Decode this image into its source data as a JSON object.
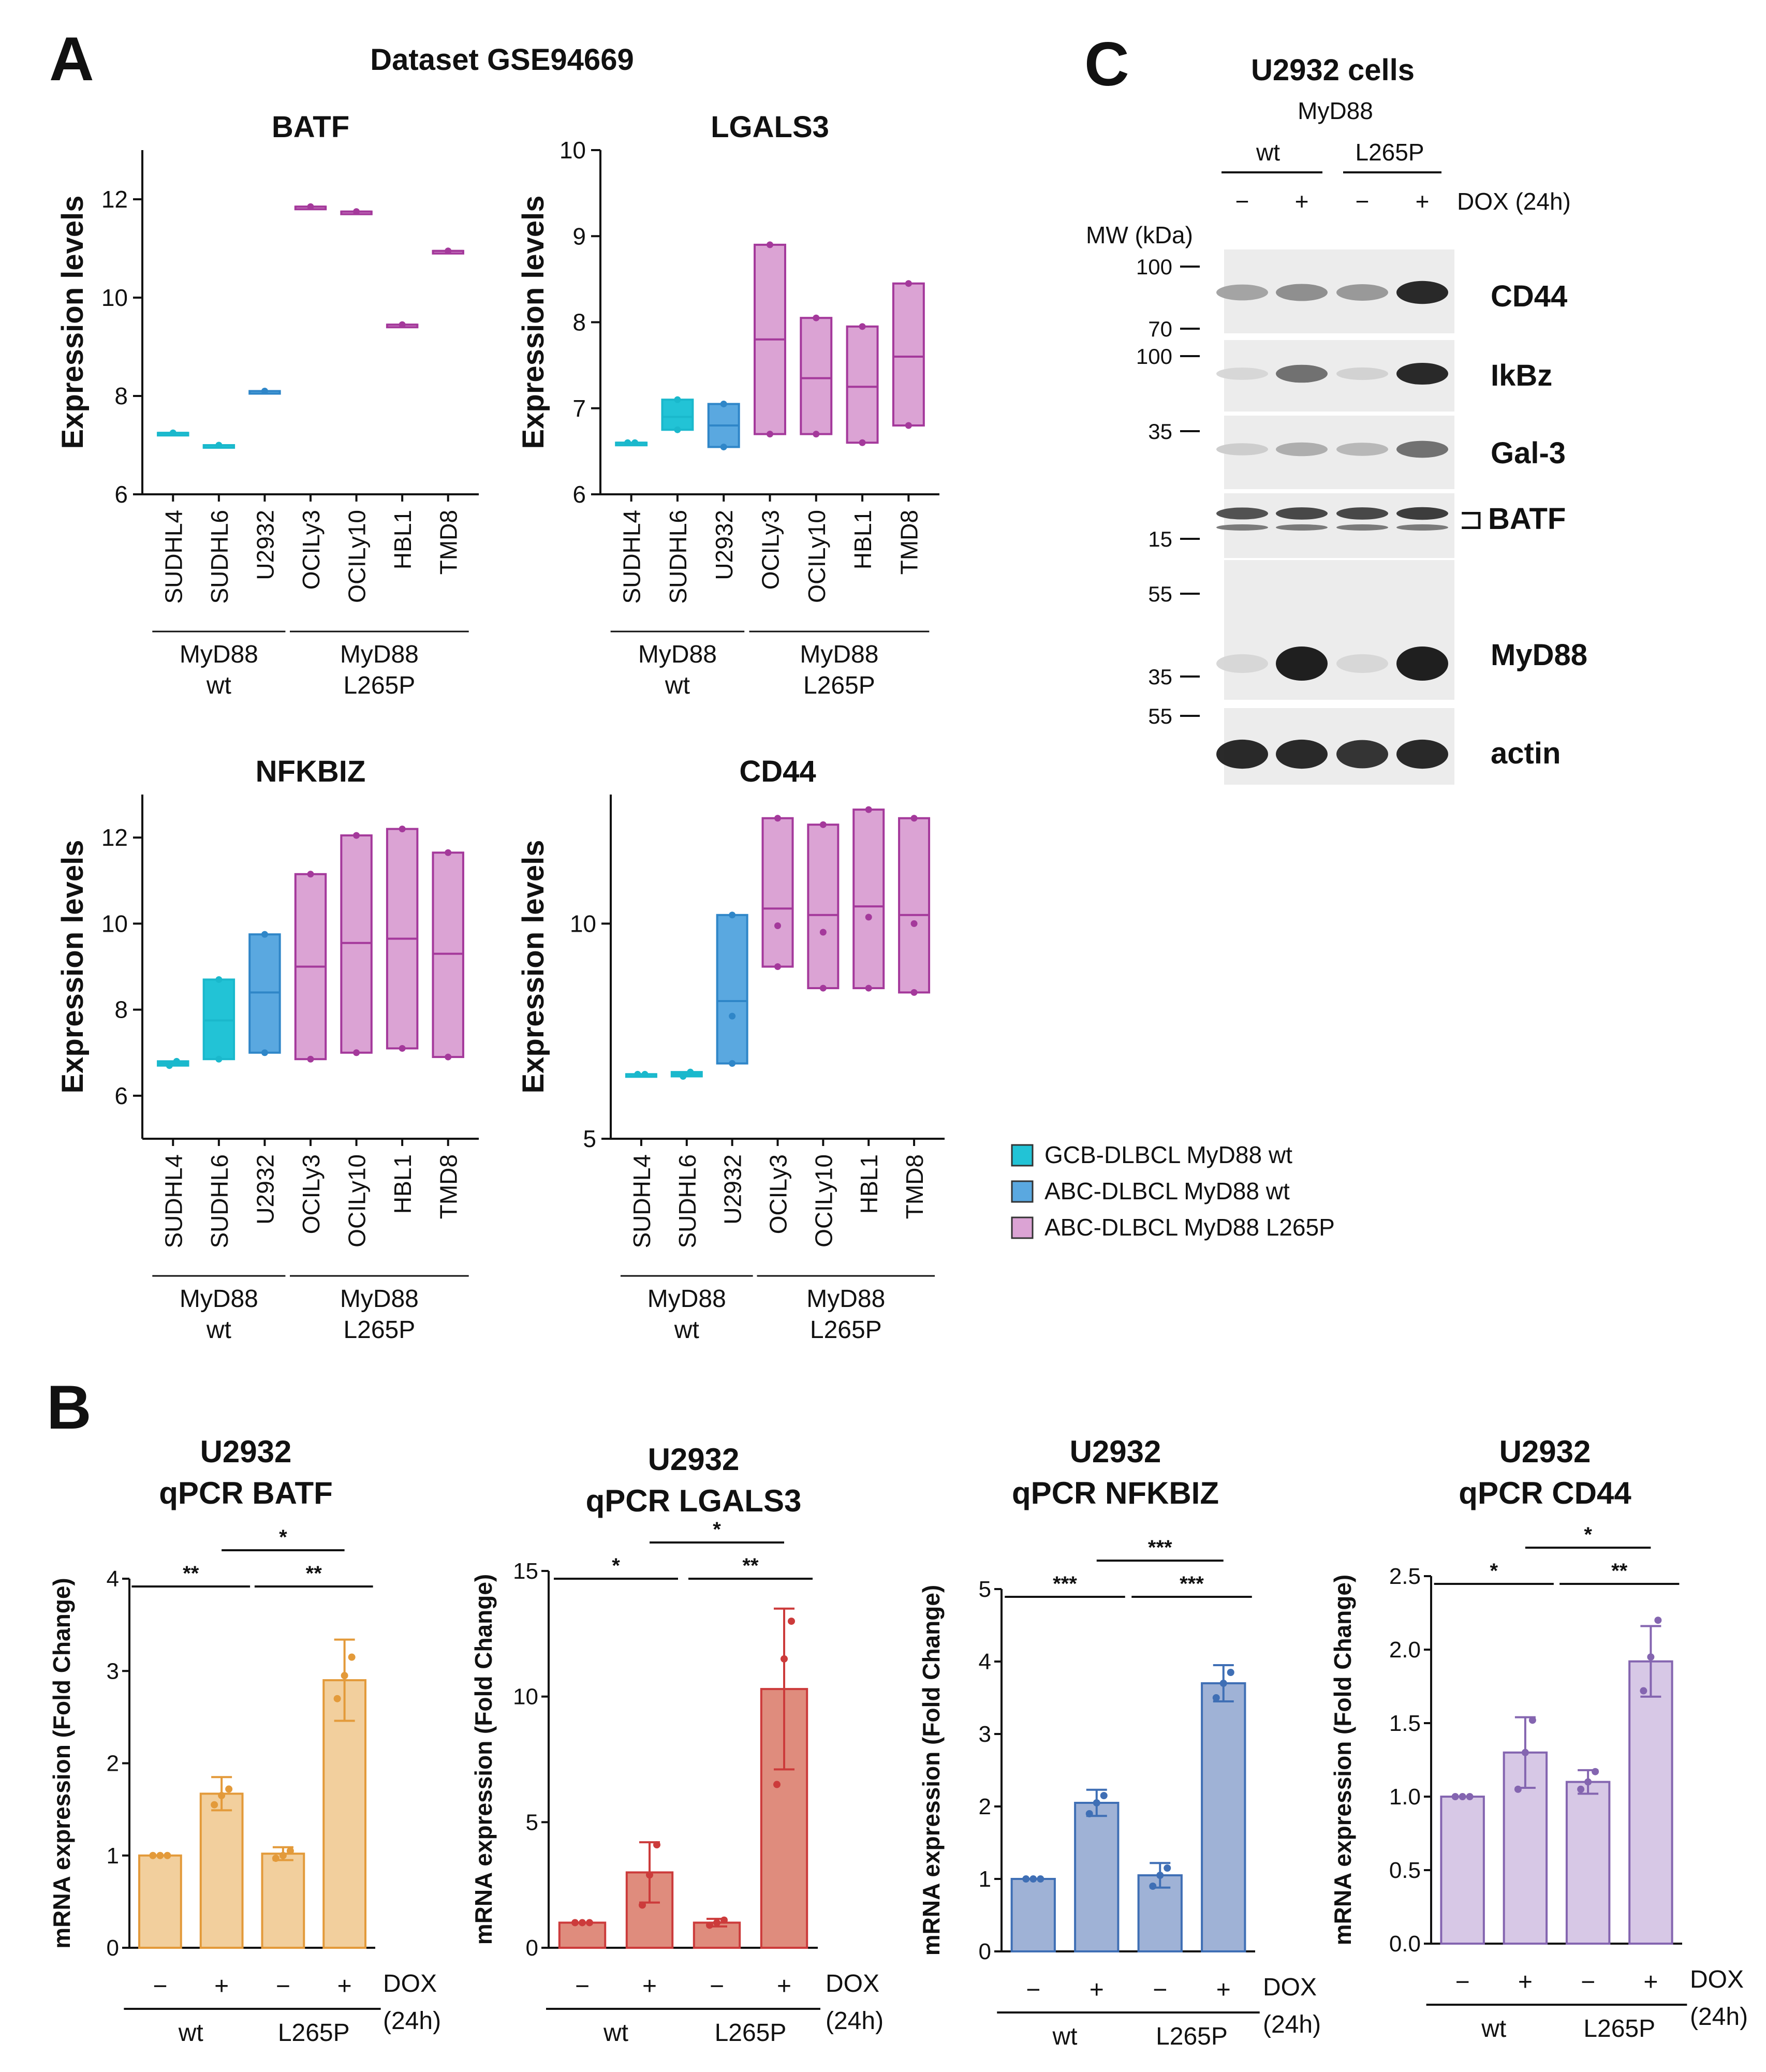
{
  "panel_labels": {
    "a": "A",
    "b": "B",
    "c": "C"
  },
  "dataset_title": "Dataset GSE94669",
  "colors": {
    "gcb_wt": "#1ab8cc",
    "abc_wt": "#2f86c8",
    "abc_l265p": "#a4399b",
    "gcb_fill": "#22c3d6",
    "abc_fill": "#5aa8e0",
    "l265p_fill": "#dba3d4",
    "batf": "#e39a3a",
    "lgals3": "#cc3b3b",
    "nfkbiz": "#3f6fb5",
    "cd44q": "#8465b0"
  },
  "boxplot_common": {
    "ylabel": "Expression levels",
    "cell_lines": [
      "SUDHL4",
      "SUDHL6",
      "U2932",
      "OCILy3",
      "OCILy10",
      "HBL1",
      "TMD8"
    ],
    "group_wt": {
      "line1": "MyD88",
      "line2": "wt"
    },
    "group_mut": {
      "line1": "MyD88",
      "line2": "L265P"
    }
  },
  "legend": {
    "items": [
      {
        "label": "GCB-DLBCL MyD88 wt",
        "color": "#22c3d6"
      },
      {
        "label": "ABC-DLBCL MyD88 wt",
        "color": "#5aa8e0"
      },
      {
        "label": "ABC-DLBCL MyD88 L265P",
        "color": "#dba3d4"
      }
    ]
  },
  "chart_data": [
    {
      "type": "box",
      "title": "BATF",
      "ylabel": "Expression levels",
      "ylim": [
        6,
        13
      ],
      "ticks": [
        6,
        8,
        10,
        12
      ],
      "categories": [
        "SUDHL4",
        "SUDHL6",
        "U2932",
        "OCILy3",
        "OCILy10",
        "HBL1",
        "TMD8"
      ],
      "boxes": [
        {
          "min": 7.25,
          "median": 7.25,
          "max": 7.25,
          "points": [
            7.25
          ],
          "group": "gcb_wt"
        },
        {
          "min": 7.0,
          "median": 7.0,
          "max": 7.0,
          "points": [
            7.0
          ],
          "group": "gcb_wt"
        },
        {
          "min": 8.1,
          "median": 8.1,
          "max": 8.1,
          "points": [
            8.1
          ],
          "group": "abc_wt"
        },
        {
          "min": 11.85,
          "median": 11.85,
          "max": 11.85,
          "points": [
            11.85
          ],
          "group": "abc_l265p"
        },
        {
          "min": 11.75,
          "median": 11.75,
          "max": 11.75,
          "points": [
            11.75
          ],
          "group": "abc_l265p"
        },
        {
          "min": 9.45,
          "median": 9.45,
          "max": 9.45,
          "points": [
            9.45
          ],
          "group": "abc_l265p"
        },
        {
          "min": 10.95,
          "median": 10.95,
          "max": 10.95,
          "points": [
            10.95
          ],
          "group": "abc_l265p"
        }
      ]
    },
    {
      "type": "box",
      "title": "LGALS3",
      "ylabel": "Expression levels",
      "ylim": [
        6,
        10
      ],
      "ticks": [
        6,
        7,
        8,
        9,
        10
      ],
      "categories": [
        "SUDHL4",
        "SUDHL6",
        "U2932",
        "OCILy3",
        "OCILy10",
        "HBL1",
        "TMD8"
      ],
      "boxes": [
        {
          "min": 6.6,
          "median": 6.6,
          "max": 6.6,
          "points": [
            6.6,
            6.6
          ],
          "group": "gcb_wt"
        },
        {
          "min": 6.75,
          "median": 6.9,
          "max": 7.1,
          "points": [
            6.75,
            7.1
          ],
          "group": "gcb_wt"
        },
        {
          "min": 6.55,
          "median": 6.8,
          "max": 7.05,
          "points": [
            6.55,
            7.05
          ],
          "group": "abc_wt"
        },
        {
          "min": 6.7,
          "median": 7.8,
          "max": 8.9,
          "points": [
            6.7,
            8.9
          ],
          "group": "abc_l265p"
        },
        {
          "min": 6.7,
          "median": 7.35,
          "max": 8.05,
          "points": [
            6.7,
            8.05
          ],
          "group": "abc_l265p"
        },
        {
          "min": 6.6,
          "median": 7.25,
          "max": 7.95,
          "points": [
            6.6,
            7.95
          ],
          "group": "abc_l265p"
        },
        {
          "min": 6.8,
          "median": 7.6,
          "max": 8.45,
          "points": [
            6.8,
            8.45
          ],
          "group": "abc_l265p"
        }
      ]
    },
    {
      "type": "box",
      "title": "NFKBIZ",
      "ylabel": "Expression levels",
      "ylim": [
        5,
        13
      ],
      "ticks": [
        6,
        8,
        10,
        12
      ],
      "categories": [
        "SUDHL4",
        "SUDHL6",
        "U2932",
        "OCILy3",
        "OCILy10",
        "HBL1",
        "TMD8"
      ],
      "boxes": [
        {
          "min": 6.7,
          "median": 6.75,
          "max": 6.8,
          "points": [
            6.7,
            6.8
          ],
          "group": "gcb_wt"
        },
        {
          "min": 6.85,
          "median": 7.75,
          "max": 8.7,
          "points": [
            6.85,
            8.7
          ],
          "group": "gcb_wt"
        },
        {
          "min": 7.0,
          "median": 8.4,
          "max": 9.75,
          "points": [
            7.0,
            9.75
          ],
          "group": "abc_wt"
        },
        {
          "min": 6.85,
          "median": 9.0,
          "max": 11.15,
          "points": [
            6.85,
            11.15
          ],
          "group": "abc_l265p"
        },
        {
          "min": 7.0,
          "median": 9.55,
          "max": 12.05,
          "points": [
            7.0,
            12.05
          ],
          "group": "abc_l265p"
        },
        {
          "min": 7.1,
          "median": 9.65,
          "max": 12.2,
          "points": [
            7.1,
            12.2
          ],
          "group": "abc_l265p"
        },
        {
          "min": 6.9,
          "median": 9.3,
          "max": 11.65,
          "points": [
            6.9,
            11.65
          ],
          "group": "abc_l265p"
        }
      ]
    },
    {
      "type": "box",
      "title": "CD44",
      "ylabel": "Expression levels",
      "ylim": [
        5,
        13
      ],
      "ticks": [
        5,
        10
      ],
      "categories": [
        "SUDHL4",
        "SUDHL6",
        "U2932",
        "OCILy3",
        "OCILy10",
        "HBL1",
        "TMD8"
      ],
      "boxes": [
        {
          "min": 6.5,
          "median": 6.5,
          "max": 6.5,
          "points": [
            6.5,
            6.5
          ],
          "group": "gcb_wt"
        },
        {
          "min": 6.45,
          "median": 6.5,
          "max": 6.55,
          "points": [
            6.45,
            6.55
          ],
          "group": "gcb_wt"
        },
        {
          "min": 6.75,
          "median": 8.2,
          "max": 10.2,
          "points": [
            6.75,
            7.85,
            10.2
          ],
          "group": "abc_wt"
        },
        {
          "min": 9.0,
          "median": 10.35,
          "max": 12.45,
          "points": [
            9.0,
            9.95,
            12.45
          ],
          "group": "abc_l265p"
        },
        {
          "min": 8.5,
          "median": 10.2,
          "max": 12.3,
          "points": [
            8.5,
            9.8,
            12.3
          ],
          "group": "abc_l265p"
        },
        {
          "min": 8.5,
          "median": 10.4,
          "max": 12.65,
          "points": [
            8.5,
            10.15,
            12.65
          ],
          "group": "abc_l265p"
        },
        {
          "min": 8.4,
          "median": 10.2,
          "max": 12.45,
          "points": [
            8.4,
            10.0,
            12.45
          ],
          "group": "abc_l265p"
        }
      ]
    },
    {
      "type": "bar",
      "title_line1": "U2932",
      "title_line2": "qPCR BATF",
      "ylabel": "mRNA expression (Fold Change)",
      "ylim": [
        0,
        4
      ],
      "ticks": [
        "0",
        "1",
        "2",
        "3",
        "4"
      ],
      "color_key": "batf",
      "fill": "#f2cf9d",
      "categories": [
        "−",
        "+",
        "−",
        "+"
      ],
      "values": [
        1.0,
        1.67,
        1.02,
        2.9
      ],
      "errors": [
        0.0,
        0.18,
        0.07,
        0.44
      ],
      "points": [
        [
          1.0,
          1.0,
          1.0
        ],
        [
          1.55,
          1.65,
          1.72
        ],
        [
          0.97,
          1.0,
          1.05
        ],
        [
          2.7,
          2.95,
          3.15
        ]
      ],
      "signif": [
        {
          "label": "**",
          "from": 0,
          "to": 1,
          "level": 1
        },
        {
          "label": "**",
          "from": 2,
          "to": 3,
          "level": 1
        },
        {
          "label": "*",
          "from": 1,
          "to": 3,
          "level": 2
        }
      ],
      "treatment_label": "DOX",
      "treatment_time": "(24h)",
      "group_wt": "wt",
      "group_mut": "L265P"
    },
    {
      "type": "bar",
      "title_line1": "U2932",
      "title_line2": "qPCR LGALS3",
      "ylabel": "mRNA expression (Fold Change)",
      "ylim": [
        0,
        15
      ],
      "ticks": [
        "0",
        "5",
        "10",
        "15"
      ],
      "color_key": "lgals3",
      "fill": "#df8c7d",
      "categories": [
        "−",
        "+",
        "−",
        "+"
      ],
      "values": [
        1.0,
        3.0,
        1.0,
        10.3
      ],
      "errors": [
        0.0,
        1.2,
        0.15,
        3.2
      ],
      "points": [
        [
          1.0,
          1.0,
          1.0
        ],
        [
          1.7,
          2.9,
          4.1
        ],
        [
          0.9,
          1.0,
          1.1
        ],
        [
          6.5,
          11.5,
          13.0
        ]
      ],
      "signif": [
        {
          "label": "*",
          "from": 0,
          "to": 1,
          "level": 1
        },
        {
          "label": "**",
          "from": 2,
          "to": 3,
          "level": 1
        },
        {
          "label": "*",
          "from": 1,
          "to": 3,
          "level": 2
        }
      ],
      "treatment_label": "DOX",
      "treatment_time": "(24h)",
      "group_wt": "wt",
      "group_mut": "L265P"
    },
    {
      "type": "bar",
      "title_line1": "U2932",
      "title_line2": "qPCR NFKBIZ",
      "ylabel": "mRNA expression (Fold Change)",
      "ylim": [
        0,
        5
      ],
      "ticks": [
        "0",
        "1",
        "2",
        "3",
        "4",
        "5"
      ],
      "color_key": "nfkbiz",
      "fill": "#9fb2d6",
      "categories": [
        "−",
        "+",
        "−",
        "+"
      ],
      "values": [
        1.0,
        2.05,
        1.05,
        3.7
      ],
      "errors": [
        0.0,
        0.18,
        0.17,
        0.25
      ],
      "points": [
        [
          1.0,
          1.0,
          1.0
        ],
        [
          1.9,
          2.05,
          2.15
        ],
        [
          0.9,
          1.05,
          1.15
        ],
        [
          3.5,
          3.7,
          3.85
        ]
      ],
      "signif": [
        {
          "label": "***",
          "from": 0,
          "to": 1,
          "level": 1
        },
        {
          "label": "***",
          "from": 2,
          "to": 3,
          "level": 1
        },
        {
          "label": "***",
          "from": 1,
          "to": 3,
          "level": 2
        }
      ],
      "treatment_label": "DOX",
      "treatment_time": "(24h)",
      "group_wt": "wt",
      "group_mut": "L265P"
    },
    {
      "type": "bar",
      "title_line1": "U2932",
      "title_line2": "qPCR CD44",
      "ylabel": "mRNA expression (Fold Change)",
      "ylim": [
        0,
        2.5
      ],
      "ticks": [
        "0.0",
        "0.5",
        "1.0",
        "1.5",
        "2.0",
        "2.5"
      ],
      "color_key": "cd44q",
      "fill": "#d7c8e6",
      "categories": [
        "−",
        "+",
        "−",
        "+"
      ],
      "values": [
        1.0,
        1.3,
        1.1,
        1.92
      ],
      "errors": [
        0.0,
        0.24,
        0.08,
        0.24
      ],
      "points": [
        [
          1.0,
          1.0,
          1.0
        ],
        [
          1.05,
          1.3,
          1.52
        ],
        [
          1.05,
          1.1,
          1.17
        ],
        [
          1.72,
          1.95,
          2.2
        ]
      ],
      "signif": [
        {
          "label": "*",
          "from": 0,
          "to": 1,
          "level": 1
        },
        {
          "label": "**",
          "from": 2,
          "to": 3,
          "level": 1
        },
        {
          "label": "*",
          "from": 1,
          "to": 3,
          "level": 2
        }
      ],
      "treatment_label": "DOX",
      "treatment_time": "(24h)",
      "group_wt": "wt",
      "group_mut": "L265P"
    }
  ],
  "western": {
    "title": "U2932 cells",
    "myd88_label": "MyD88",
    "group_wt": "wt",
    "group_mut": "L265P",
    "lane_signs": [
      "−",
      "+",
      "−",
      "+"
    ],
    "treatment": "DOX (24h)",
    "mw_header": "MW (kDa)",
    "mw_marks": [
      "100",
      "70",
      "100",
      "35",
      "15",
      "55",
      "35",
      "55"
    ],
    "bands": [
      {
        "label": "CD44",
        "intensity": [
          0.35,
          0.45,
          0.4,
          0.95
        ]
      },
      {
        "label": "IkBz",
        "intensity": [
          0.1,
          0.6,
          0.12,
          0.95
        ]
      },
      {
        "label": "Gal-3",
        "intensity": [
          0.15,
          0.3,
          0.25,
          0.6
        ]
      },
      {
        "label": "BATF",
        "intensity": [
          0.75,
          0.8,
          0.8,
          0.85
        ]
      },
      {
        "label": "MyD88",
        "intensity": [
          0.1,
          1.0,
          0.1,
          1.0
        ]
      },
      {
        "label": "actin",
        "intensity": [
          0.95,
          0.95,
          0.9,
          0.95
        ]
      }
    ],
    "batf_bracket": "⊐"
  }
}
